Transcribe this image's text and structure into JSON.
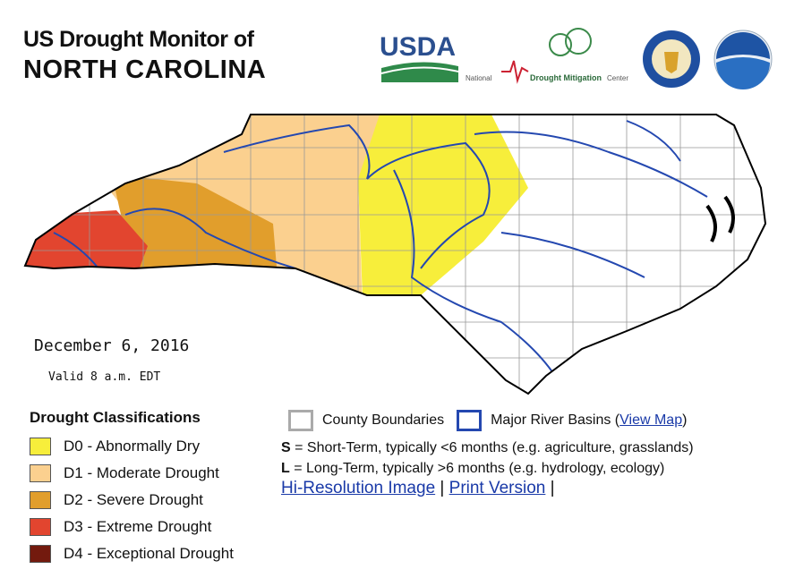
{
  "header": {
    "title_line1": "US Drought Monitor of",
    "title_line2": "NORTH CAROLINA"
  },
  "logos": {
    "usda": "USDA",
    "ndmc_prefix": "National",
    "ndmc_name": "Drought Mitigation",
    "ndmc_suffix": "Center"
  },
  "map": {
    "date": "December 6, 2016",
    "valid": "Valid 8 a.m. EDT"
  },
  "legend": {
    "title": "Drought Classifications",
    "items": [
      {
        "label": "D0 - Abnormally Dry",
        "color": "#f7ee3b"
      },
      {
        "label": "D1 - Moderate Drought",
        "color": "#fbd08f"
      },
      {
        "label": "D2 - Severe Drought",
        "color": "#e19e2c"
      },
      {
        "label": "D3 - Extreme Drought",
        "color": "#e2452f"
      },
      {
        "label": "D4 - Exceptional Drought",
        "color": "#731a0e"
      }
    ]
  },
  "notes": {
    "county": "County Boundaries",
    "basins": "Major River Basins (",
    "view_map": "View Map",
    "basins_close": ")",
    "s_key": "S",
    "s_text": " = Short-Term, typically <6 months (e.g. agriculture, grasslands)",
    "l_key": "L",
    "l_text": " = Long-Term, typically >6 months  (e.g. hydrology, ecology)",
    "hires": "Hi-Resolution Image",
    "sep1": "|",
    "print": "Print Version",
    "sep2": "|"
  }
}
